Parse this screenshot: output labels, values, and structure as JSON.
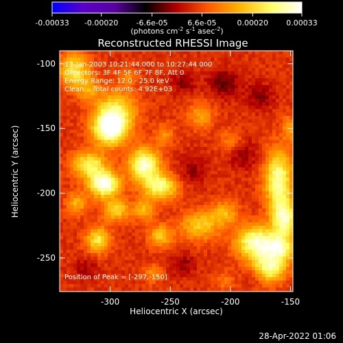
{
  "colorbar": {
    "tick_labels": [
      "-0.00033",
      "-0.00020",
      "-6.6e-05",
      "6.6e-05",
      "0.00020",
      "0.00033"
    ],
    "tick_values": [
      -0.00033,
      -0.0002,
      -6.6e-05,
      6.6e-05,
      0.0002,
      0.00033
    ],
    "range": [
      -0.00033,
      0.00033
    ],
    "unit_main": "(photons cm",
    "unit_exp1": "-2",
    "unit_mid": " s",
    "unit_exp2": "-1",
    "unit_end": " asec",
    "unit_exp3": "-2",
    "unit_close": ")",
    "colormap": [
      "#0000ff",
      "#5a00c8",
      "#5a00a0",
      "#000000",
      "#b40000",
      "#ff5a00",
      "#ffb400",
      "#ffff64",
      "#ffffff"
    ]
  },
  "overlay": {
    "line1": "13-Jan-2003 10:21:44.000 to 10:27:44.000",
    "line2": "Detectors: 3F 4F 5F 6F 7F 8F, Att 0",
    "line3": "Energy Range: 12.0 - 25.0 keV",
    "line4": "Clean    Total counts: 4.92E+03",
    "peak": "Position of Peak = [-297,-150]"
  },
  "footer": {
    "timestamp": "28-Apr-2022 01:06"
  },
  "chart_data": {
    "type": "heatmap",
    "title": "Reconstructed RHESSI Image",
    "xlabel": "Heliocentric X (arcsec)",
    "ylabel": "Heliocentric Y (arcsec)",
    "xlim": [
      -342,
      -148
    ],
    "ylim": [
      -276,
      -90
    ],
    "xticks": [
      -300,
      -250,
      -200,
      -150
    ],
    "xtick_labels": [
      "-300",
      "-250",
      "-200",
      "-150"
    ],
    "yticks": [
      -100,
      -150,
      -200,
      -250
    ],
    "ytick_labels": [
      "-100",
      "-150",
      "-200",
      "-250"
    ],
    "background_level": 4.5e-05,
    "blobs": [
      {
        "x": -300,
        "y": -150,
        "sx": 10,
        "sy": 9,
        "amp": 0.00031
      },
      {
        "x": -295,
        "y": -135,
        "sx": 12,
        "sy": 10,
        "amp": 0.00016
      },
      {
        "x": -330,
        "y": -105,
        "sx": 9,
        "sy": 9,
        "amp": 0.00018
      },
      {
        "x": -318,
        "y": -120,
        "sx": 7,
        "sy": 6,
        "amp": 0.0001
      },
      {
        "x": -305,
        "y": -193,
        "sx": 9,
        "sy": 7,
        "amp": 0.00029
      },
      {
        "x": -318,
        "y": -178,
        "sx": 10,
        "sy": 7,
        "amp": 0.0002
      },
      {
        "x": -295,
        "y": -213,
        "sx": 8,
        "sy": 6,
        "amp": 0.00016
      },
      {
        "x": -272,
        "y": -178,
        "sx": 9,
        "sy": 9,
        "amp": 0.00026
      },
      {
        "x": -258,
        "y": -195,
        "sx": 10,
        "sy": 7,
        "amp": 0.00022
      },
      {
        "x": -272,
        "y": -213,
        "sx": 6,
        "sy": 6,
        "amp": 0.00012
      },
      {
        "x": -310,
        "y": -236,
        "sx": 7,
        "sy": 7,
        "amp": 0.00018
      },
      {
        "x": -328,
        "y": -208,
        "sx": 6,
        "sy": 6,
        "amp": 0.00012
      },
      {
        "x": -258,
        "y": -233,
        "sx": 7,
        "sy": 6,
        "amp": 0.00014
      },
      {
        "x": -225,
        "y": -225,
        "sx": 12,
        "sy": 8,
        "amp": 0.00014
      },
      {
        "x": -205,
        "y": -215,
        "sx": 8,
        "sy": 6,
        "amp": 0.00012
      },
      {
        "x": -160,
        "y": -190,
        "sx": 8,
        "sy": 16,
        "amp": 0.00024
      },
      {
        "x": -155,
        "y": -220,
        "sx": 7,
        "sy": 10,
        "amp": 0.00023
      },
      {
        "x": -178,
        "y": -238,
        "sx": 12,
        "sy": 9,
        "amp": 0.00026
      },
      {
        "x": -168,
        "y": -258,
        "sx": 10,
        "sy": 8,
        "amp": 0.00022
      },
      {
        "x": -158,
        "y": -243,
        "sx": 8,
        "sy": 7,
        "amp": 0.00018
      },
      {
        "x": -225,
        "y": -140,
        "sx": 8,
        "sy": 7,
        "amp": 0.0001
      },
      {
        "x": -255,
        "y": -155,
        "sx": 6,
        "sy": 6,
        "amp": 8e-05
      },
      {
        "x": -200,
        "y": -160,
        "sx": 7,
        "sy": 6,
        "amp": 7e-05
      },
      {
        "x": -265,
        "y": -262,
        "sx": 6,
        "sy": 5,
        "amp": 8e-05
      },
      {
        "x": -205,
        "y": -268,
        "sx": 6,
        "sy": 5,
        "amp": 6e-05
      },
      {
        "x": -150,
        "y": -150,
        "sx": 5,
        "sy": 7,
        "amp": 0.0001
      },
      {
        "x": -285,
        "y": -110,
        "sx": 6,
        "sy": 5,
        "amp": 7e-05
      },
      {
        "x": -240,
        "y": -115,
        "sx": 8,
        "sy": 6,
        "amp": -6e-05
      },
      {
        "x": -205,
        "y": -115,
        "sx": 10,
        "sy": 8,
        "amp": -8e-05
      },
      {
        "x": -175,
        "y": -125,
        "sx": 8,
        "sy": 7,
        "amp": -7e-05
      },
      {
        "x": -190,
        "y": -170,
        "sx": 9,
        "sy": 8,
        "amp": -6e-05
      },
      {
        "x": -232,
        "y": -182,
        "sx": 8,
        "sy": 8,
        "amp": -6e-05
      },
      {
        "x": -240,
        "y": -255,
        "sx": 8,
        "sy": 6,
        "amp": -6e-05
      },
      {
        "x": -320,
        "y": -258,
        "sx": 7,
        "sy": 6,
        "amp": -5e-05
      },
      {
        "x": -180,
        "y": -265,
        "sx": 6,
        "sy": 5,
        "amp": -5e-05
      }
    ]
  }
}
